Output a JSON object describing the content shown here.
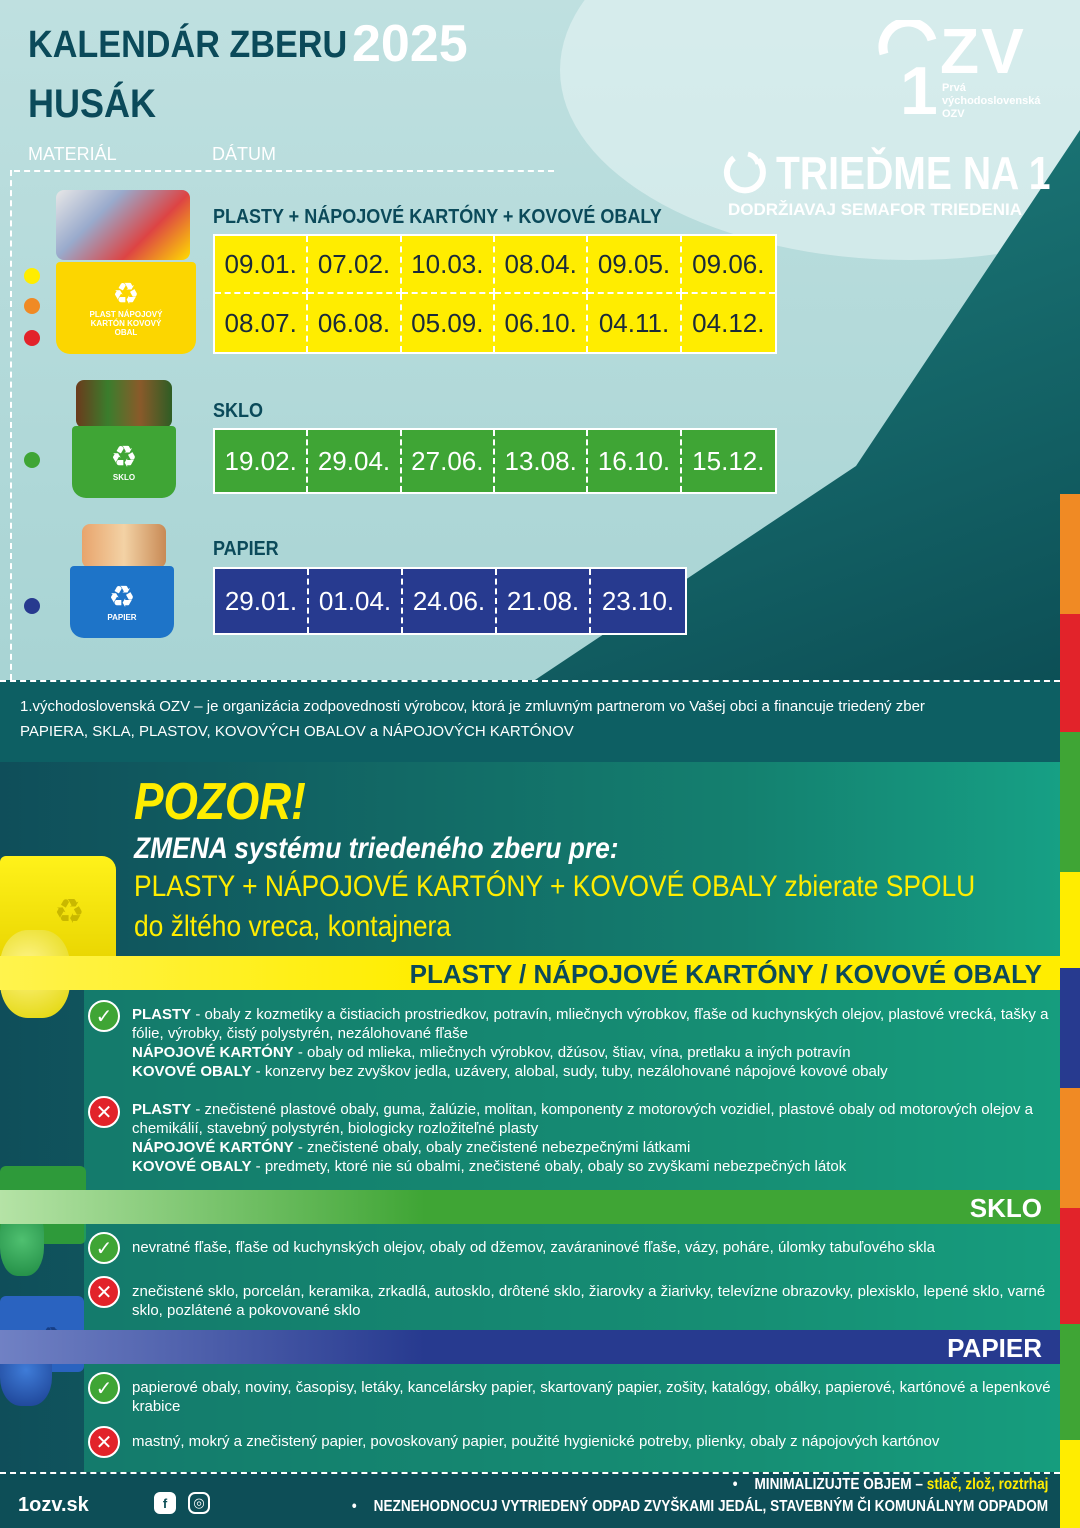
{
  "header": {
    "title_line1": "KALENDÁR ZBERU",
    "title_year": "2025",
    "title_line2": "HUSÁK",
    "col_material": "MATERIÁL",
    "col_date": "DÁTUM"
  },
  "logo": {
    "big": "ZV",
    "one": "1",
    "sub_line1": "Prvá",
    "sub_line2": "východoslovenská",
    "sub_line3": "OZV"
  },
  "slogan": {
    "main": "TRIEĎME NA 1",
    "sub": "DODRŽIAVAJ SEMAFOR TRIEDENIA"
  },
  "categories": [
    {
      "label": "PLASTY + NÁPOJOVÉ KARTÓNY + KOVOVÉ OBALY",
      "bin_label": "PLAST NÁPOJOVÝ KARTÓN KOVOVÝ OBAL",
      "color": "#ffed00",
      "dates": [
        "09.01.",
        "07.02.",
        "10.03.",
        "08.04.",
        "09.05.",
        "09.06.",
        "08.07.",
        "06.08.",
        "05.09.",
        "06.10.",
        "04.11.",
        "04.12."
      ]
    },
    {
      "label": "SKLO",
      "bin_label": "SKLO",
      "color": "#3fa535",
      "dates": [
        "19.02.",
        "29.04.",
        "27.06.",
        "13.08.",
        "16.10.",
        "15.12."
      ]
    },
    {
      "label": "PAPIER",
      "bin_label": "PAPIER",
      "color": "#273a8f",
      "dates": [
        "29.01.",
        "01.04.",
        "24.06.",
        "21.08.",
        "23.10."
      ]
    }
  ],
  "info": {
    "line1": "1.východoslovenská OZV – je organizácia zodpovednosti výrobcov, ktorá je zmluvným partnerom vo Vašej obci a financuje triedený zber",
    "line2": "PAPIERA, SKLA, PLASTOV, KOVOVÝCH OBALOV a NÁPOJOVÝCH KARTÓNOV"
  },
  "notice": {
    "pozor": "POZOR!",
    "zmena": "ZMENA systému triedeného zberu pre:",
    "line2_a": "PLASTY + NÁPOJOVÉ KARTÓNY + KOVOVÉ  OBALY",
    "line2_b": " zbierate SPOLU",
    "line3": "do žltého vreca, kontajnera"
  },
  "sections": {
    "plasty": {
      "title": "PLASTY / NÁPOJOVÉ KARTÓNY / KOVOVÉ OBALY",
      "yes": [
        {
          "bold": "PLASTY",
          "text": " - obaly z kozmetiky a čistiacich prostriedkov, potravín, mliečnych výrobkov, fľaše od kuchynských olejov, plastové vrecká, tašky a fólie, výrobky, čistý polystyrén, nezálohované fľaše"
        },
        {
          "bold": "NÁPOJOVÉ KARTÓNY",
          "text": " - obaly od mlieka, mliečnych výrobkov, džúsov, štiav, vína, pretlaku a iných potravín"
        },
        {
          "bold": "KOVOVÉ OBALY",
          "text": " - konzervy bez zvyškov jedla, uzávery, alobal, sudy, tuby, nezálohované nápojové kovové obaly"
        }
      ],
      "no": [
        {
          "bold": "PLASTY",
          "text": " - znečistené plastové obaly, guma, žalúzie, molitan, komponenty z motorových vozidiel, plastové obaly od motorových olejov a chemikálií, stavebný polystyrén, biologicky rozložiteľné plasty"
        },
        {
          "bold": "NÁPOJOVÉ KARTÓNY",
          "text": " - znečistené obaly, obaly znečistené nebezpečnými látkami"
        },
        {
          "bold": "KOVOVÉ OBALY",
          "text": " - predmety, ktoré nie sú obalmi, znečistené obaly, obaly so zvyškami nebezpečných látok"
        }
      ]
    },
    "sklo": {
      "title": "SKLO",
      "yes": "nevratné fľaše, fľaše od kuchynských olejov, obaly od džemov, zaváraninové fľaše, vázy, poháre, úlomky tabuľového skla",
      "no": "znečistené sklo, porcelán, keramika, zrkadlá, autosklo, drôtené sklo, žiarovky a žiarivky, televízne obrazovky, plexisklo, lepené sklo, varné sklo, pozlátené a pokovované sklo"
    },
    "papier": {
      "title": "PAPIER",
      "yes": "papierové obaly, noviny, časopisy, letáky, kancelársky papier, skartovaný papier, zošity, katalógy, obálky, papierové, kartónové a lepenkové krabice",
      "no": "mastný, mokrý a znečistený papier, povoskovaný papier, použité hygienické potreby, plienky, obaly z nápojových kartónov"
    }
  },
  "footer": {
    "site": "1ozv.sk",
    "line1_a": "MINIMALIZUJTE OBJEM – ",
    "line1_b": "stlač, zlož, roztrhaj",
    "line2": "NEZNEHODNOCUJ VYTRIEDENÝ ODPAD ZVYŠKAMI JEDÁL, STAVEBNÝM ČI KOMUNÁLNYM ODPADOM"
  },
  "icons": {
    "ok": "✓",
    "no": "✕",
    "recycle": "♻",
    "bullet": "•"
  }
}
